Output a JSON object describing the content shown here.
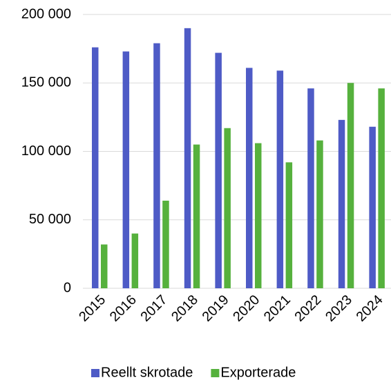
{
  "chart_data": {
    "type": "bar",
    "categories": [
      "2015",
      "2016",
      "2017",
      "2018",
      "2019",
      "2020",
      "2021",
      "2022",
      "2023",
      "2024"
    ],
    "series": [
      {
        "name": "Reellt skrotade",
        "color": "#4e5bc6",
        "values": [
          176000,
          173000,
          179000,
          190000,
          172000,
          161000,
          159000,
          146000,
          123000,
          118000
        ]
      },
      {
        "name": "Exporterade",
        "color": "#56b13d",
        "values": [
          32000,
          40000,
          64000,
          105000,
          117000,
          106000,
          92000,
          108000,
          150000,
          146000
        ]
      }
    ],
    "ylim": [
      0,
      200000
    ],
    "yticks": [
      0,
      {
        "value": 50000,
        "label": "50 000"
      },
      {
        "value": 100000,
        "label": "100 000"
      },
      {
        "value": 150000,
        "label": "150 000"
      },
      {
        "value": 200000,
        "label": "200 000"
      }
    ],
    "grid": true,
    "legend": "bottom"
  }
}
